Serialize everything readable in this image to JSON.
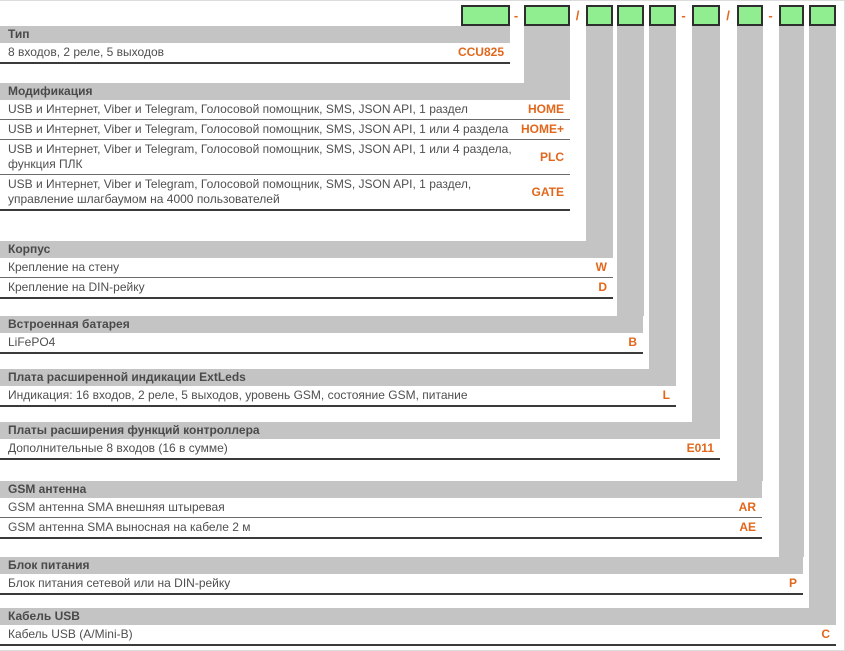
{
  "colors": {
    "accent_orange": "#e2671c",
    "box_green": "#90ee90",
    "bar_gray": "#c4c4c4"
  },
  "order_code": {
    "separators": [
      "-",
      "/",
      "-",
      "/",
      "-"
    ]
  },
  "sections": [
    {
      "title": "Тип",
      "rows": [
        {
          "desc": "8 входов, 2 реле, 5 выходов",
          "code": "CCU825"
        }
      ]
    },
    {
      "title": "Модификация",
      "rows": [
        {
          "desc": "USB и Интернет, Viber и Telegram, Голосовой помощник, SMS, JSON API, 1 раздел",
          "code": "HOME"
        },
        {
          "desc": "USB и Интернет, Viber и Telegram, Голосовой помощник, SMS, JSON API, 1 или 4 раздела",
          "code": "HOME+"
        },
        {
          "desc": "USB и Интернет, Viber и Telegram, Голосовой помощник, SMS, JSON API, 1 или 4 раздела, функция ПЛК",
          "code": "PLC"
        },
        {
          "desc": "USB и Интернет, Viber и Telegram, Голосовой помощник, SMS, JSON API, 1 раздел, управление шлагбаумом на 4000 пользователей",
          "code": "GATE"
        }
      ]
    },
    {
      "title": "Корпус",
      "rows": [
        {
          "desc": "Крепление на стену",
          "code": "W"
        },
        {
          "desc": "Крепление на DIN-рейку",
          "code": "D"
        }
      ]
    },
    {
      "title": "Встроенная батарея",
      "rows": [
        {
          "desc": "LiFePO4",
          "code": "B"
        }
      ]
    },
    {
      "title": "Плата расширенной индикации ExtLeds",
      "rows": [
        {
          "desc": "Индикация: 16 входов, 2 реле, 5 выходов, уровень GSM, состояние GSM, питание",
          "code": "L"
        }
      ]
    },
    {
      "title": "Платы расширения функций контроллера",
      "rows": [
        {
          "desc": "Дополнительные 8 входов (16 в сумме)",
          "code": "E011"
        }
      ]
    },
    {
      "title": "GSM антенна",
      "rows": [
        {
          "desc": "GSM антенна SMA внешняя штыревая",
          "code": "AR"
        },
        {
          "desc": "GSM антенна SMA выносная на кабеле 2 м",
          "code": "AE"
        }
      ]
    },
    {
      "title": "Блок питания",
      "rows": [
        {
          "desc": "Блок питания сетевой или на DIN-рейку",
          "code": "P"
        }
      ]
    },
    {
      "title": "Кабель USB",
      "rows": [
        {
          "desc": "Кабель USB (A/Mini-B)",
          "code": "C"
        }
      ]
    }
  ]
}
